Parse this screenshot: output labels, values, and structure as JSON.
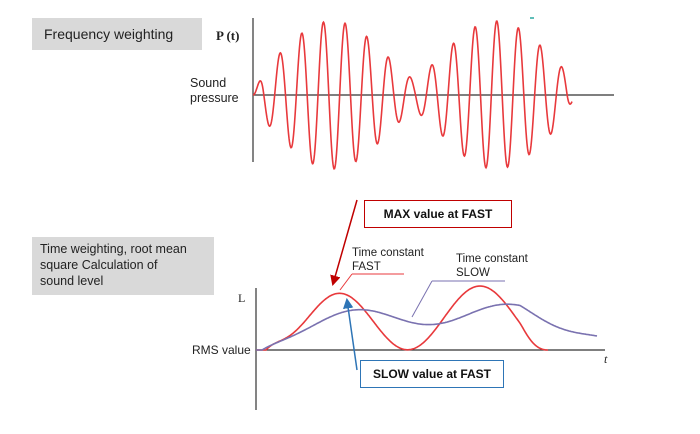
{
  "frequency_weighting": {
    "label": "Frequency weighting"
  },
  "top_plot": {
    "y_axis_label": "P (t)",
    "y_title_line1": "Sound",
    "y_title_line2": "pressure"
  },
  "time_weighting": {
    "line1": "Time weighting, root mean",
    "line2": "square Calculation of",
    "line3": "sound level"
  },
  "bottom_plot": {
    "y_axis_label": "L",
    "x_axis_label": "t",
    "rms_label": "RMS value"
  },
  "annotations": {
    "max_fast": "MAX value at FAST",
    "slow_fast": "SLOW value at FAST",
    "tc_fast_line1": "Time constant",
    "tc_fast_line2": "FAST",
    "tc_slow_line1": "Time constant",
    "tc_slow_line2": "SLOW"
  },
  "colors": {
    "fast": "#e8393c",
    "slow": "#7a72b0",
    "red_arrow": "#c00000",
    "blue_arrow": "#2e75b6"
  }
}
